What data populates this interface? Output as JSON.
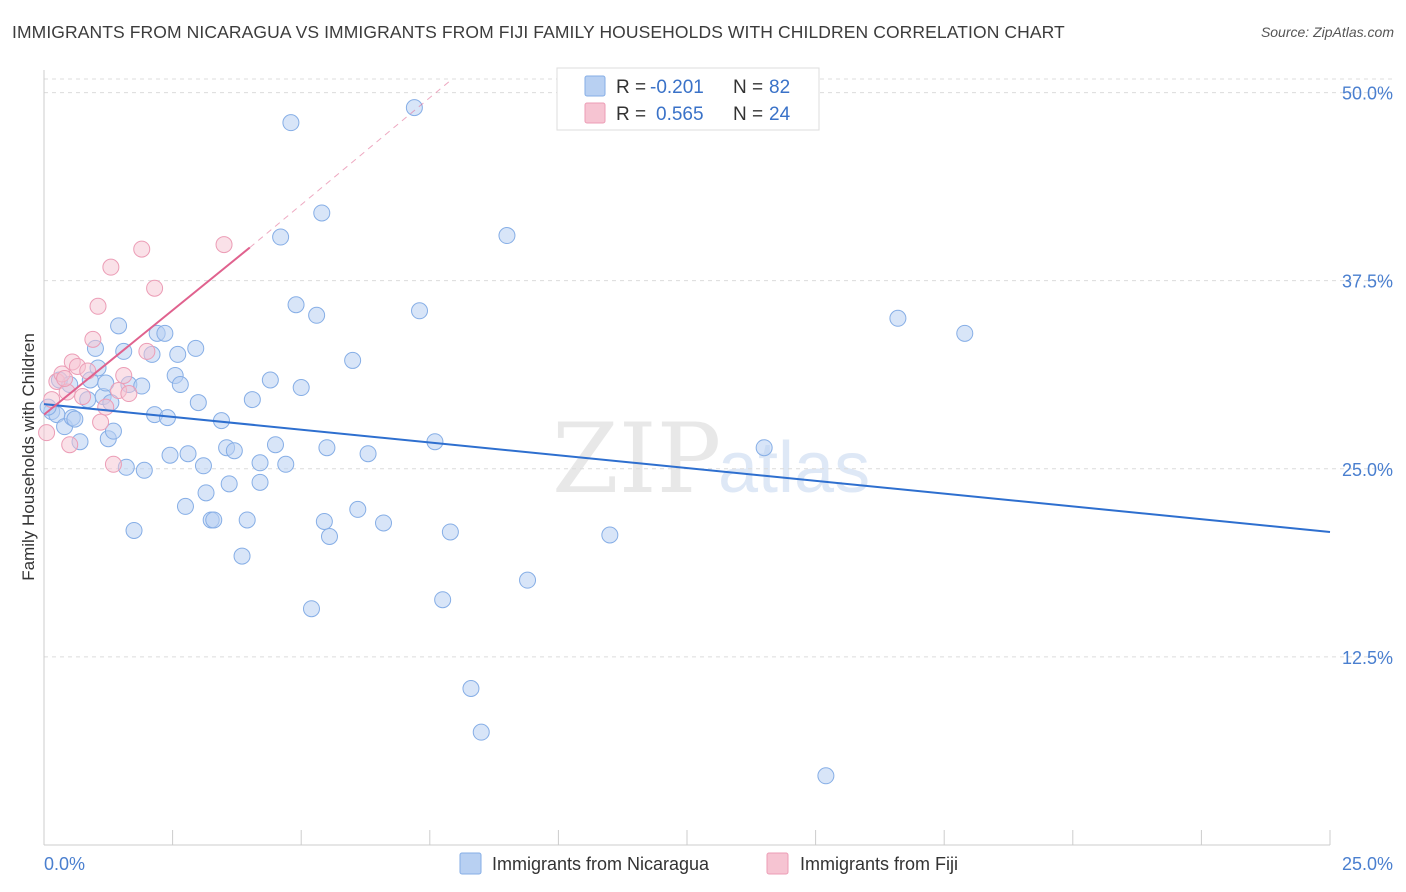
{
  "title": "IMMIGRANTS FROM NICARAGUA VS IMMIGRANTS FROM FIJI FAMILY HOUSEHOLDS WITH CHILDREN CORRELATION CHART",
  "source": "Source: ZipAtlas.com",
  "watermark": {
    "zip": "ZIP",
    "atlas": "atlas"
  },
  "colors": {
    "nicaragua_fill": "#b8d0f2",
    "nicaragua_stroke": "#86aee6",
    "nicaragua_line": "#2e6fcf",
    "fiji_fill": "#f6c4d2",
    "fiji_stroke": "#ec9db6",
    "fiji_line": "#e0628e",
    "axis_label": "#4a7fcf",
    "grid": "#dcdcdc"
  },
  "legend": {
    "rows": [
      {
        "r_label": "R =",
        "r_value": "-0.201",
        "n_label": "N =",
        "n_value": "82"
      },
      {
        "r_label": "R =",
        "r_value": "0.565",
        "n_label": "N =",
        "n_value": "24"
      }
    ]
  },
  "chart_data": {
    "type": "scatter",
    "title": "IMMIGRANTS FROM NICARAGUA VS IMMIGRANTS FROM FIJI FAMILY HOUSEHOLDS WITH CHILDREN CORRELATION CHART",
    "xlabel": "",
    "ylabel": "Family Households with Children",
    "xlim": [
      0,
      25
    ],
    "ylim": [
      0,
      51.5
    ],
    "x_tick_labels": [
      "0.0%",
      "25.0%"
    ],
    "y_ticks": [
      12.5,
      25.0,
      37.5,
      50.0
    ],
    "y_tick_labels": [
      "12.5%",
      "25.0%",
      "37.5%",
      "50.0%"
    ],
    "grid": "horizontal dashed",
    "legend_position": "bottom",
    "series": [
      {
        "name": "Immigrants from Nicaragua",
        "r": -0.201,
        "n": 82,
        "trend": {
          "x": [
            0.0,
            25.0
          ],
          "y": [
            29.3,
            20.8
          ]
        },
        "points": [
          [
            0.15,
            28.8
          ],
          [
            0.25,
            28.6
          ],
          [
            0.3,
            30.9
          ],
          [
            0.4,
            27.8
          ],
          [
            0.5,
            30.6
          ],
          [
            0.55,
            28.4
          ],
          [
            0.7,
            26.8
          ],
          [
            0.85,
            29.6
          ],
          [
            0.9,
            30.9
          ],
          [
            1.0,
            33.0
          ],
          [
            1.05,
            31.7
          ],
          [
            1.15,
            29.8
          ],
          [
            1.2,
            30.7
          ],
          [
            1.25,
            27.0
          ],
          [
            1.35,
            27.5
          ],
          [
            1.45,
            34.5
          ],
          [
            1.55,
            32.8
          ],
          [
            1.6,
            25.1
          ],
          [
            1.65,
            30.6
          ],
          [
            1.75,
            20.9
          ],
          [
            1.9,
            30.5
          ],
          [
            1.95,
            24.9
          ],
          [
            2.1,
            32.6
          ],
          [
            2.15,
            28.6
          ],
          [
            2.2,
            34.0
          ],
          [
            2.35,
            34.0
          ],
          [
            2.4,
            28.4
          ],
          [
            2.45,
            25.9
          ],
          [
            2.55,
            31.2
          ],
          [
            2.6,
            32.6
          ],
          [
            2.65,
            30.6
          ],
          [
            2.75,
            22.5
          ],
          [
            2.8,
            26.0
          ],
          [
            2.95,
            33.0
          ],
          [
            3.0,
            29.4
          ],
          [
            3.1,
            25.2
          ],
          [
            3.15,
            23.4
          ],
          [
            3.25,
            21.6
          ],
          [
            3.45,
            28.2
          ],
          [
            3.55,
            26.4
          ],
          [
            3.6,
            24.0
          ],
          [
            3.7,
            26.2
          ],
          [
            3.85,
            19.2
          ],
          [
            3.95,
            21.6
          ],
          [
            4.05,
            29.6
          ],
          [
            4.2,
            24.1
          ],
          [
            4.2,
            25.4
          ],
          [
            4.4,
            30.9
          ],
          [
            4.5,
            26.6
          ],
          [
            4.6,
            40.4
          ],
          [
            4.7,
            25.3
          ],
          [
            4.8,
            48.0
          ],
          [
            4.9,
            35.9
          ],
          [
            5.0,
            30.4
          ],
          [
            5.2,
            15.7
          ],
          [
            5.3,
            35.2
          ],
          [
            5.4,
            42.0
          ],
          [
            5.45,
            21.5
          ],
          [
            5.5,
            26.4
          ],
          [
            5.55,
            20.5
          ],
          [
            6.0,
            32.2
          ],
          [
            6.1,
            22.3
          ],
          [
            6.3,
            26.0
          ],
          [
            6.6,
            21.4
          ],
          [
            7.2,
            49.0
          ],
          [
            7.3,
            35.5
          ],
          [
            7.6,
            26.8
          ],
          [
            7.75,
            16.3
          ],
          [
            7.9,
            20.8
          ],
          [
            8.3,
            10.4
          ],
          [
            8.5,
            7.5
          ],
          [
            9.0,
            40.5
          ],
          [
            9.4,
            17.6
          ],
          [
            11.0,
            20.6
          ],
          [
            14.0,
            26.4
          ],
          [
            15.2,
            4.6
          ],
          [
            16.6,
            35.0
          ],
          [
            17.9,
            34.0
          ],
          [
            0.08,
            29.1
          ],
          [
            1.3,
            29.4
          ],
          [
            0.6,
            28.3
          ],
          [
            3.3,
            21.6
          ]
        ]
      },
      {
        "name": "Immigrants from Fiji",
        "r": 0.565,
        "n": 24,
        "trend": {
          "x": [
            0.0,
            4.0
          ],
          "y": [
            28.6,
            39.7
          ],
          "dashed_to": {
            "x": 7.9,
            "y": 50.8
          }
        },
        "points": [
          [
            0.05,
            27.4
          ],
          [
            0.15,
            29.6
          ],
          [
            0.25,
            30.8
          ],
          [
            0.35,
            31.3
          ],
          [
            0.45,
            30.1
          ],
          [
            0.5,
            26.6
          ],
          [
            0.55,
            32.1
          ],
          [
            0.65,
            31.8
          ],
          [
            0.75,
            29.8
          ],
          [
            0.85,
            31.5
          ],
          [
            0.95,
            33.6
          ],
          [
            1.05,
            35.8
          ],
          [
            1.1,
            28.1
          ],
          [
            1.2,
            29.1
          ],
          [
            1.3,
            38.4
          ],
          [
            1.35,
            25.3
          ],
          [
            1.45,
            30.2
          ],
          [
            1.55,
            31.2
          ],
          [
            1.65,
            30.0
          ],
          [
            1.9,
            39.6
          ],
          [
            2.0,
            32.8
          ],
          [
            2.15,
            37.0
          ],
          [
            3.5,
            39.9
          ],
          [
            0.4,
            31.0
          ]
        ]
      }
    ]
  },
  "bottom_legend": [
    {
      "label": "Immigrants from Nicaragua"
    },
    {
      "label": "Immigrants from Fiji"
    }
  ]
}
